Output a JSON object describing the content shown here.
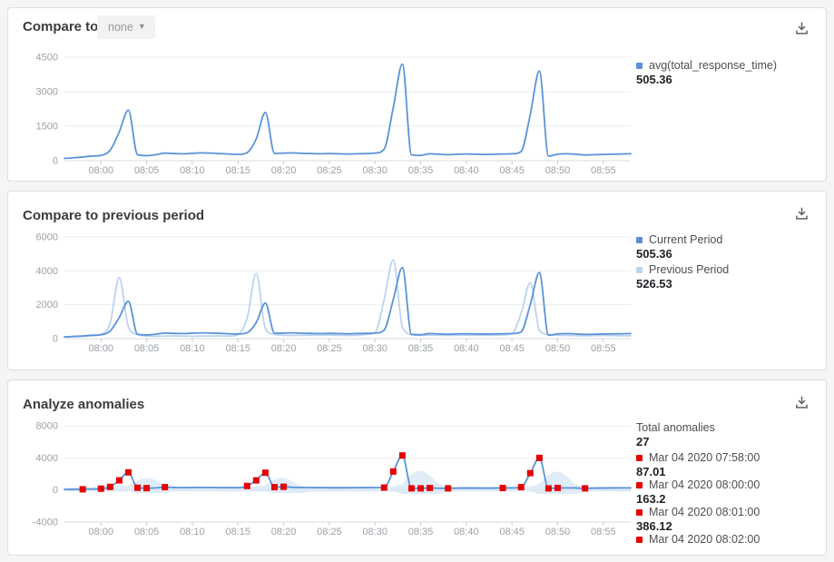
{
  "app": {
    "background": "#f4f6f6",
    "accent_blue": "#5b93d8",
    "accent_light_blue": "#bdd3f0",
    "anomaly_red": "#e60000"
  },
  "icons": {
    "caret_down": "▾",
    "download": "download-tray-arrow"
  },
  "panels": [
    {
      "title": "Compare to",
      "compare_dropdown": {
        "value": "none"
      },
      "legend": [
        {
          "label": "avg(total_response_time)",
          "value": "505.36",
          "marker_color": "#5b8fd4"
        }
      ],
      "chart_data": {
        "type": "line",
        "title": "Compare to",
        "xlabel": "",
        "ylabel": "",
        "grid": "horizontal",
        "legend_position": "right",
        "x_minutes_range": [
          476,
          538
        ],
        "x_ticks": [
          {
            "m": 480,
            "label": "08:00"
          },
          {
            "m": 485,
            "label": "08:05"
          },
          {
            "m": 490,
            "label": "08:10"
          },
          {
            "m": 495,
            "label": "08:15"
          },
          {
            "m": 500,
            "label": "08:20"
          },
          {
            "m": 505,
            "label": "08:25"
          },
          {
            "m": 510,
            "label": "08:30"
          },
          {
            "m": 515,
            "label": "08:35"
          },
          {
            "m": 520,
            "label": "08:40"
          },
          {
            "m": 525,
            "label": "08:45"
          },
          {
            "m": 530,
            "label": "08:50"
          },
          {
            "m": 535,
            "label": "08:55"
          }
        ],
        "ylim": [
          0,
          4500
        ],
        "y_ticks": [
          0,
          1500,
          3000,
          4500
        ],
        "series": [
          {
            "name": "avg(total_response_time)",
            "color": "#5b93d8",
            "avg_value": 505.36,
            "start_minute": 476,
            "step_minutes": 1,
            "values": [
              100,
              130,
              160,
              200,
              230,
              450,
              1250,
              2200,
              260,
              220,
              260,
              330,
              310,
              300,
              320,
              340,
              330,
              310,
              290,
              270,
              350,
              950,
              2100,
              320,
              330,
              340,
              320,
              310,
              300,
              310,
              300,
              290,
              300,
              310,
              330,
              500,
              2300,
              4200,
              250,
              230,
              300,
              280,
              260,
              280,
              290,
              280,
              270,
              280,
              290,
              300,
              400,
              2000,
              3900,
              200,
              280,
              300,
              280,
              250,
              260,
              270,
              280,
              290,
              300
            ]
          }
        ]
      }
    },
    {
      "title": "Compare to previous period",
      "legend": [
        {
          "label": "Current Period",
          "value": "505.36",
          "marker_color": "#5b8fd4"
        },
        {
          "label": "Previous Period",
          "value": "526.53",
          "marker_color": "#bdd3f0"
        }
      ],
      "chart_data": {
        "type": "line",
        "title": "Compare to previous period",
        "xlabel": "",
        "ylabel": "",
        "grid": "horizontal",
        "legend_position": "right",
        "x_minutes_range": [
          476,
          538
        ],
        "x_ticks": [
          {
            "m": 480,
            "label": "08:00"
          },
          {
            "m": 485,
            "label": "08:05"
          },
          {
            "m": 490,
            "label": "08:10"
          },
          {
            "m": 495,
            "label": "08:15"
          },
          {
            "m": 500,
            "label": "08:20"
          },
          {
            "m": 505,
            "label": "08:25"
          },
          {
            "m": 510,
            "label": "08:30"
          },
          {
            "m": 515,
            "label": "08:35"
          },
          {
            "m": 520,
            "label": "08:40"
          },
          {
            "m": 525,
            "label": "08:45"
          },
          {
            "m": 530,
            "label": "08:50"
          },
          {
            "m": 535,
            "label": "08:55"
          }
        ],
        "ylim": [
          0,
          6000
        ],
        "y_ticks": [
          0,
          2000,
          4000,
          6000
        ],
        "series": [
          {
            "name": "Previous Period",
            "color": "#bdd3f0",
            "avg_value": 526.53,
            "start_minute": 476,
            "step_minutes": 1,
            "values": [
              100,
              120,
              140,
              170,
              250,
              900,
              3600,
              700,
              250,
              150,
              140,
              150,
              160,
              150,
              140,
              150,
              150,
              160,
              150,
              250,
              1200,
              3850,
              600,
              250,
              200,
              190,
              200,
              210,
              200,
              210,
              200,
              190,
              200,
              250,
              350,
              2300,
              4650,
              700,
              250,
              200,
              210,
              200,
              190,
              200,
              210,
              200,
              200,
              210,
              220,
              300,
              1500,
              3300,
              500,
              250,
              200,
              190,
              180,
              170,
              180,
              190,
              180,
              170,
              170
            ]
          },
          {
            "name": "Current Period",
            "color": "#5b93d8",
            "avg_value": 505.36,
            "start_minute": 476,
            "step_minutes": 1,
            "values": [
              100,
              130,
              160,
              200,
              230,
              450,
              1250,
              2200,
              260,
              220,
              260,
              330,
              310,
              300,
              320,
              340,
              330,
              310,
              290,
              270,
              350,
              950,
              2100,
              320,
              330,
              340,
              320,
              310,
              300,
              310,
              300,
              290,
              300,
              310,
              330,
              500,
              2300,
              4200,
              250,
              230,
              300,
              280,
              260,
              280,
              290,
              280,
              270,
              280,
              290,
              300,
              400,
              2000,
              3900,
              200,
              280,
              300,
              280,
              250,
              260,
              270,
              280,
              290,
              300
            ]
          }
        ]
      }
    },
    {
      "title": "Analyze anomalies",
      "summary": {
        "label": "Total anomalies",
        "value": "27"
      },
      "anomalies": [
        {
          "date": "Mar 04 2020 07:58:00",
          "value": "87.01",
          "marker_color": "#e60000"
        },
        {
          "date": "Mar 04 2020 08:00:00",
          "value": "163.2",
          "marker_color": "#e60000"
        },
        {
          "date": "Mar 04 2020 08:01:00",
          "value": "386.12",
          "marker_color": "#e60000"
        },
        {
          "date": "Mar 04 2020 08:02:00",
          "marker_color": "#e60000"
        }
      ],
      "chart_data": {
        "type": "line",
        "title": "Analyze anomalies",
        "xlabel": "",
        "ylabel": "",
        "grid": "horizontal",
        "legend_position": "right",
        "x_minutes_range": [
          476,
          538
        ],
        "x_ticks": [
          {
            "m": 480,
            "label": "08:00"
          },
          {
            "m": 485,
            "label": "08:05"
          },
          {
            "m": 490,
            "label": "08:10"
          },
          {
            "m": 495,
            "label": "08:15"
          },
          {
            "m": 500,
            "label": "08:20"
          },
          {
            "m": 505,
            "label": "08:25"
          },
          {
            "m": 510,
            "label": "08:30"
          },
          {
            "m": 515,
            "label": "08:35"
          },
          {
            "m": 520,
            "label": "08:40"
          },
          {
            "m": 525,
            "label": "08:45"
          },
          {
            "m": 530,
            "label": "08:50"
          },
          {
            "m": 535,
            "label": "08:55"
          }
        ],
        "ylim": [
          -4000,
          8000
        ],
        "y_ticks": [
          -4000,
          0,
          4000,
          8000
        ],
        "band": {
          "color": "#c9dcf4",
          "start_minute": 476,
          "step_minutes": 1,
          "upper": [
            300,
            300,
            300,
            350,
            400,
            450,
            500,
            600,
            1200,
            1500,
            1200,
            600,
            450,
            400,
            400,
            400,
            400,
            400,
            400,
            400,
            400,
            450,
            600,
            1300,
            1500,
            1000,
            500,
            420,
            400,
            400,
            400,
            400,
            400,
            400,
            400,
            400,
            500,
            800,
            2000,
            2400,
            1800,
            800,
            450,
            400,
            400,
            400,
            400,
            400,
            400,
            400,
            400,
            500,
            800,
            1900,
            2300,
            1700,
            700,
            450,
            400,
            400,
            400,
            400,
            400
          ],
          "lower": [
            -200,
            -200,
            -200,
            -200,
            -200,
            -200,
            -200,
            -200,
            -400,
            -400,
            -400,
            -400,
            -200,
            -200,
            -200,
            -200,
            -200,
            -200,
            -200,
            -200,
            -200,
            -200,
            -200,
            -400,
            -400,
            -400,
            -400,
            -200,
            -200,
            -200,
            -200,
            -200,
            -200,
            -200,
            -200,
            -200,
            -200,
            -500,
            -500,
            -500,
            -500,
            -500,
            -200,
            -200,
            -200,
            -200,
            -200,
            -200,
            -200,
            -200,
            -200,
            -200,
            -500,
            -500,
            -500,
            -500,
            -500,
            -200,
            -200,
            -200,
            -200,
            -200,
            -200
          ]
        },
        "series": [
          {
            "name": "avg(total_response_time)",
            "color": "#5b93d8",
            "start_minute": 476,
            "step_minutes": 1,
            "values": [
              60,
              70,
              87,
              120,
              163,
              386,
              1200,
              2200,
              280,
              230,
              260,
              350,
              310,
              300,
              310,
              320,
              310,
              300,
              290,
              280,
              500,
              1200,
              2150,
              350,
              400,
              330,
              310,
              300,
              290,
              280,
              280,
              280,
              290,
              300,
              300,
              300,
              2300,
              4300,
              200,
              200,
              250,
              220,
              200,
              230,
              240,
              240,
              230,
              240,
              250,
              260,
              350,
              2100,
              4000,
              200,
              250,
              260,
              250,
              200,
              230,
              240,
              250,
              260,
              260
            ]
          }
        ],
        "markers": {
          "name": "anomaly-points",
          "color": "#e60000",
          "total": 27,
          "points": [
            [
              478,
              87
            ],
            [
              480,
              163
            ],
            [
              481,
              386
            ],
            [
              482,
              1200
            ],
            [
              483,
              2200
            ],
            [
              484,
              280
            ],
            [
              485,
              230
            ],
            [
              487,
              350
            ],
            [
              496,
              500
            ],
            [
              497,
              1200
            ],
            [
              498,
              2150
            ],
            [
              499,
              350
            ],
            [
              500,
              400
            ],
            [
              511,
              300
            ],
            [
              512,
              2300
            ],
            [
              513,
              4300
            ],
            [
              514,
              200
            ],
            [
              515,
              200
            ],
            [
              516,
              250
            ],
            [
              518,
              200
            ],
            [
              524,
              250
            ],
            [
              526,
              350
            ],
            [
              527,
              2100
            ],
            [
              528,
              4000
            ],
            [
              529,
              200
            ],
            [
              530,
              250
            ],
            [
              533,
              200
            ]
          ]
        }
      }
    }
  ]
}
